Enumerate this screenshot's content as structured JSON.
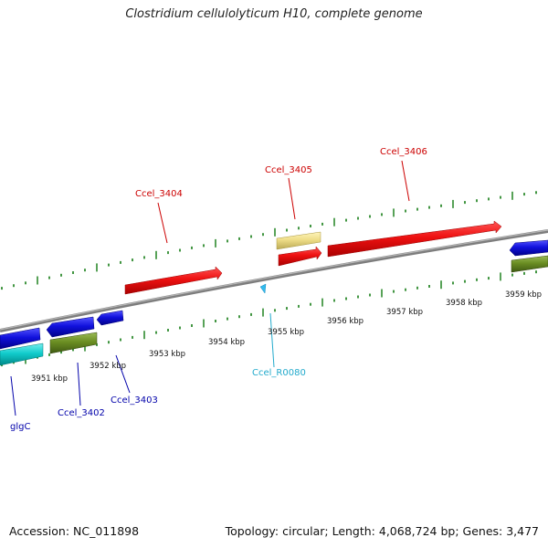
{
  "title": "Clostridium cellulolyticum H10, complete genome",
  "accession": "Accession: NC_011898",
  "topology": "Topology: circular; Length: 4,068,724 bp; Genes: 3,477",
  "colors": {
    "backbone": "#8a8a8a",
    "tick": "#2e8b2e",
    "red": "#ee1111",
    "blue": "#1111dd",
    "cyan": "#11cccc",
    "olive": "#6b8e23",
    "khaki": "#eedd88",
    "label_red": "#cc0000",
    "label_blue": "#0000aa",
    "label_cyan": "#22aacc",
    "kbp_text": "#111111"
  },
  "kbp_labels": [
    "3951 kbp",
    "3952 kbp",
    "3953 kbp",
    "3954 kbp",
    "3955 kbp",
    "3956 kbp",
    "3957 kbp",
    "3958 kbp",
    "3959 kbp"
  ],
  "gene_labels": [
    "glgC",
    "Ccel_3402",
    "Ccel_3403",
    "Ccel_3404",
    "Ccel_3405",
    "Ccel_3406",
    "Ccel_R0080"
  ]
}
